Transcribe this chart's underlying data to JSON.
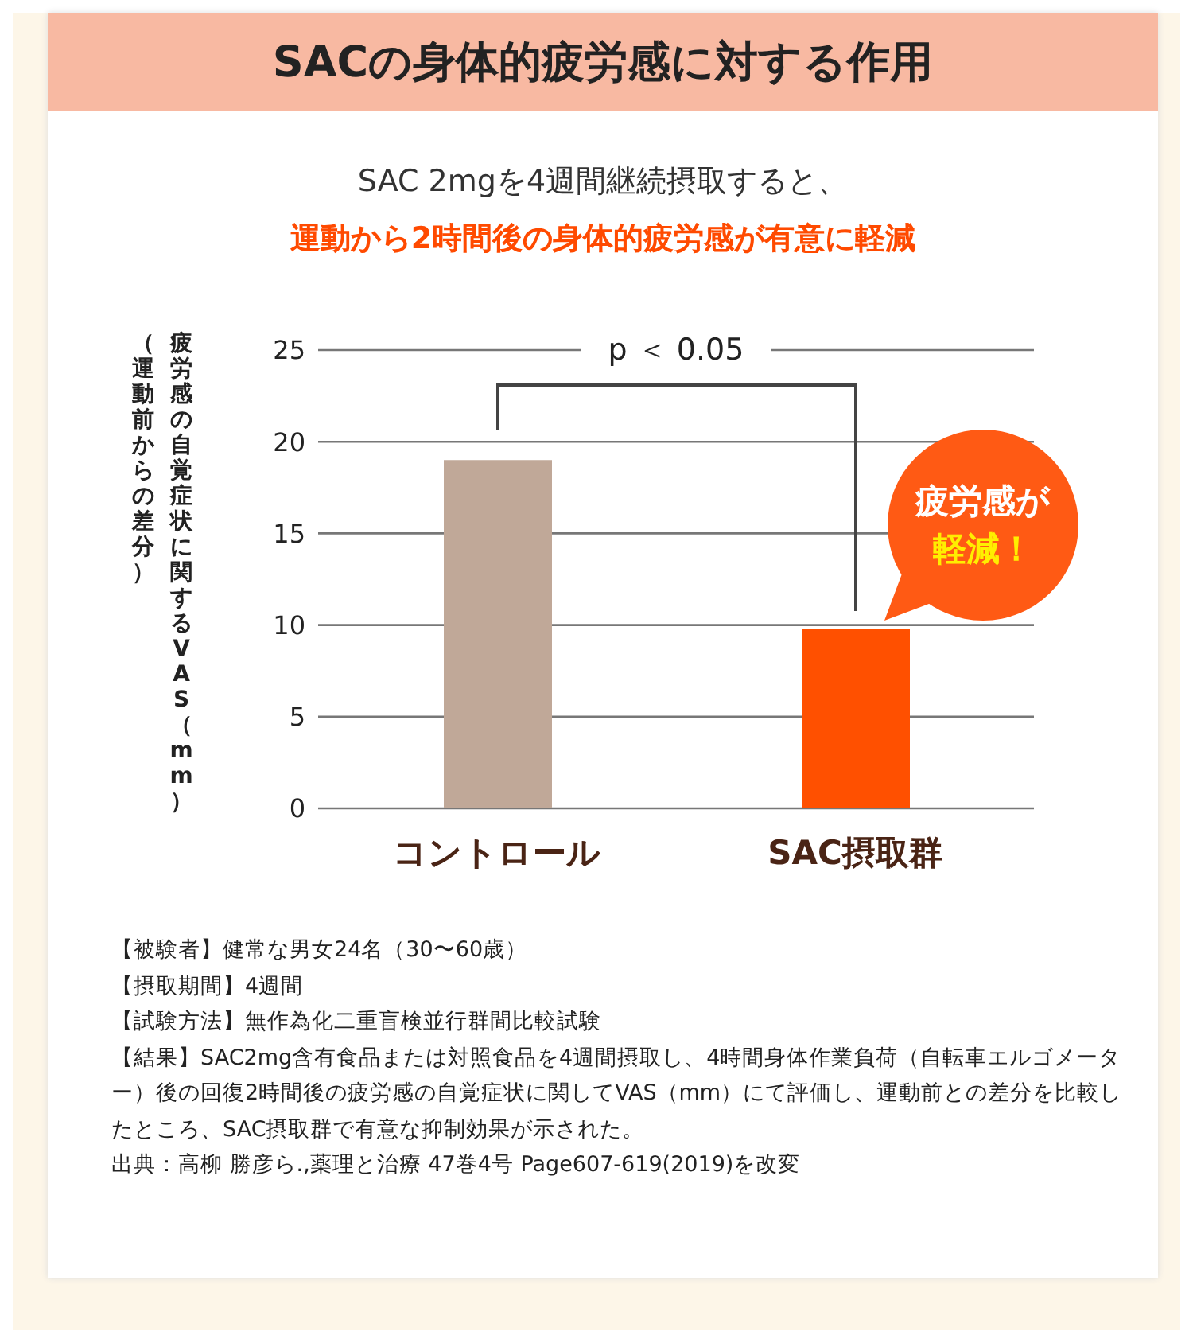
{
  "chart_data": {
    "type": "bar",
    "title": "SACの身体的疲労感に対する作用",
    "subtitle": "SAC  2mgを4週間継続摂取すると、運動から2時間後の身体的疲労感が有意に軽減",
    "ylabel": "疲労感の自覚症状に関するVAS（mm）（運動前からの差分）",
    "categories": [
      "コントロール",
      "SAC摂取群"
    ],
    "values": [
      19.0,
      9.8
    ],
    "colors": [
      "#c0a898",
      "#ff5000"
    ],
    "ylim": [
      0,
      25
    ],
    "yticks": [
      0,
      5,
      10,
      15,
      20,
      25
    ],
    "grid": "y",
    "annotations": [
      "p ＜ 0.05",
      "疲労感が軽減！",
      "【被験者】健常な男女24名（30〜60歳）",
      "【摂取期間】4週間",
      "【試験方法】無作為化二重盲検並行群間比較試験",
      "【結果】SAC2mg含有食品または対照食品を4週間摂取し、4時間身体作業負荷（自転車エルゴメーター）後の回復2時間後の疲労感の自覚症状に関してVAS（mm）にて評価し、運動前との差分を比較したところ、SAC摂取群で有意な抑制効果が示された。",
      "出典：高柳 勝彦ら.,薬理と治療 47巻4号 Page607-619(2019)を改変"
    ]
  }
}
